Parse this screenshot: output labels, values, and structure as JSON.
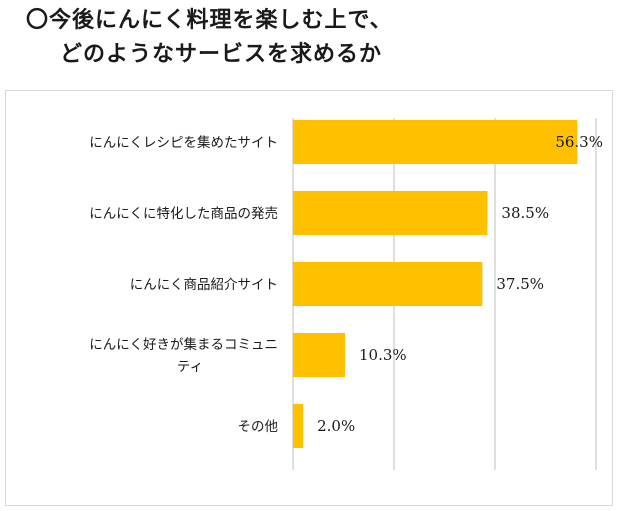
{
  "title": {
    "line1": "〇今後にんにく料理を楽しむ上で、",
    "line2": "どのようなサービスを求めるか"
  },
  "colors": {
    "bar": "#FFC000",
    "grid": "#bfbfbf",
    "frame": "#d9d9d9"
  },
  "chart_data": {
    "type": "bar",
    "orientation": "horizontal",
    "categories": [
      [
        "にんにくレシピを集めたサイト"
      ],
      [
        "にんにくに特化した商品の発売"
      ],
      [
        "にんにく商品紹介サイト"
      ],
      [
        "にんにく好きが集まるコミュニ",
        "ティ"
      ],
      [
        "その他"
      ]
    ],
    "values": [
      56.3,
      38.5,
      37.5,
      10.3,
      2.0
    ],
    "value_labels": [
      "56.3%",
      "38.5%",
      "37.5%",
      "10.3%",
      "2.0%"
    ],
    "xlim": [
      0,
      60
    ],
    "gridlines": [
      0,
      20,
      40,
      60
    ],
    "grid": true,
    "legend": "none"
  }
}
